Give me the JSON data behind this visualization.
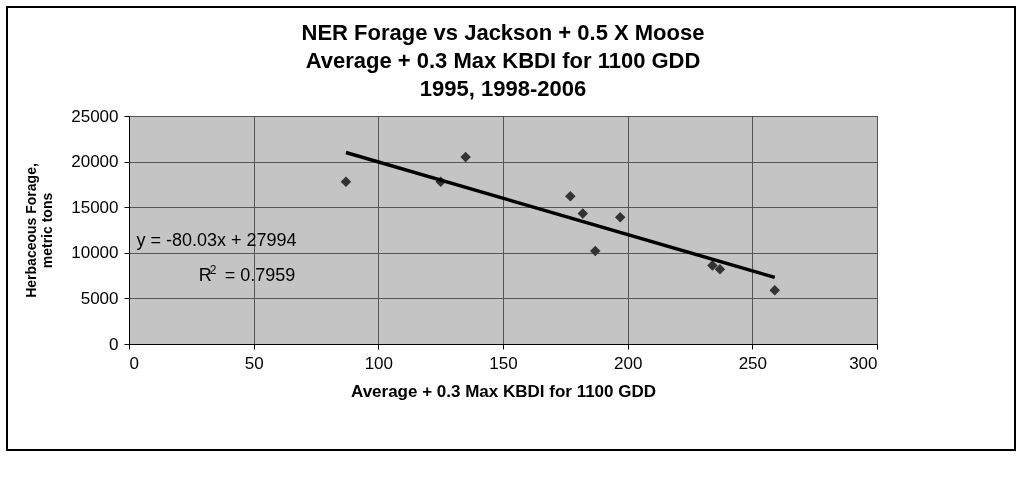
{
  "chart_data": {
    "type": "scatter",
    "title": [
      "NER Forage vs Jackson + 0.5 X Moose",
      "Average + 0.3 Max KBDI for 1100 GDD",
      "1995, 1998-2006"
    ],
    "xlabel": "Average + 0.3 Max KBDI for 1100 GDD",
    "ylabel": [
      "Herbaceous Forage,",
      "metric tons"
    ],
    "annotations": [
      "y = -80.03x + 27994",
      "R$^{2}$ = 0.7959"
    ],
    "xlim": [
      0,
      300
    ],
    "xticks": [
      0,
      50,
      100,
      150,
      200,
      250,
      300
    ],
    "ylim": [
      0,
      25000
    ],
    "yticks": [
      0,
      5000,
      10000,
      15000,
      20000,
      25000
    ],
    "grid": true,
    "series": [
      {
        "color": "#333333",
        "marker": "diamond",
        "x": [
          87,
          125,
          135,
          177,
          182,
          187,
          197,
          234,
          237,
          259
        ],
        "values": [
          17800,
          17800,
          20500,
          16200,
          14300,
          10200,
          13900,
          8600,
          8200,
          5900
        ]
      },
      {
        "type": "line",
        "color": "#000000",
        "x": [
          87,
          259
        ],
        "values": [
          21000,
          7300
        ]
      }
    ]
  }
}
